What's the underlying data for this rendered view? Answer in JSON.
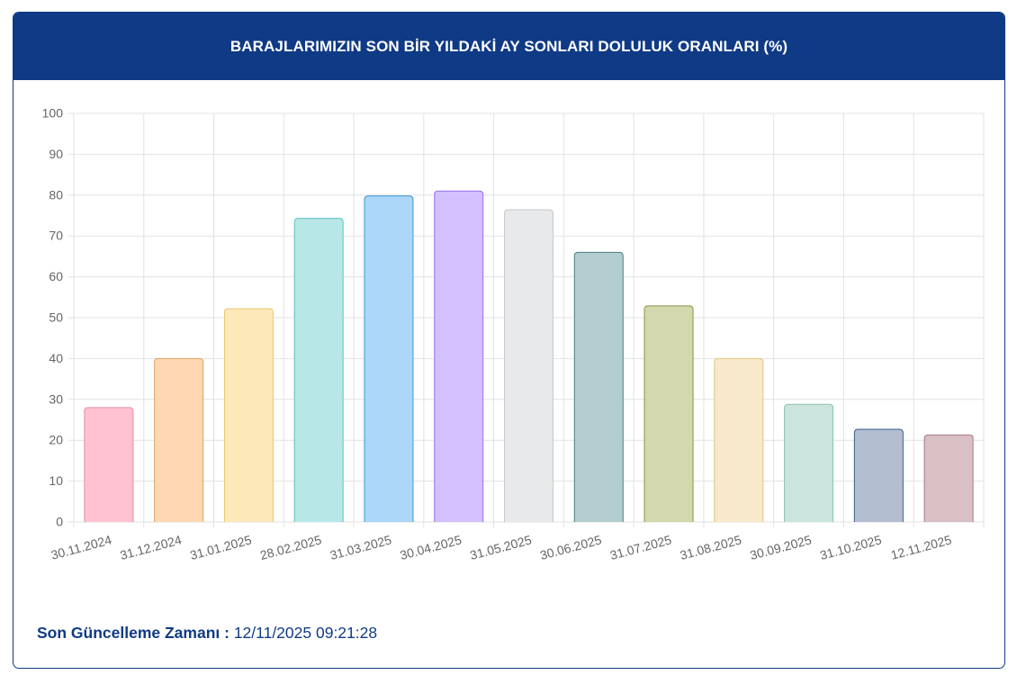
{
  "panel": {
    "title": "BARAJLARIMIZIN SON BİR YILDAKİ AY SONLARI DOLULUK ORANLARI (%)"
  },
  "footer": {
    "label": "Son Güncelleme Zamanı :",
    "value": "12/11/2025 09:21:28"
  },
  "chart_data": {
    "type": "bar",
    "categories": [
      "30.11.2024",
      "31.12.2024",
      "31.01.2025",
      "28.02.2025",
      "31.03.2025",
      "30.04.2025",
      "31.05.2025",
      "30.06.2025",
      "31.07.2025",
      "31.08.2025",
      "30.09.2025",
      "31.10.2025",
      "12.11.2025"
    ],
    "values": [
      28,
      40,
      52.2,
      74.3,
      79.8,
      81,
      76.4,
      66,
      52.9,
      40,
      28.8,
      22.7,
      21.3
    ],
    "ylim": [
      0,
      100
    ],
    "yticks": [
      0,
      10,
      20,
      30,
      40,
      50,
      60,
      70,
      80,
      90,
      100
    ],
    "grid": true,
    "legend": "none",
    "colors": {
      "fill": [
        "#ffc2d1",
        "#fed8b3",
        "#fde8ba",
        "#b7e7e6",
        "#acd7f9",
        "#d4c0fd",
        "#e8e9ea",
        "#b3cdd1",
        "#d3d8ae",
        "#f7e9c9",
        "#c9e5de",
        "#b3bfd1",
        "#d8c0c5"
      ],
      "stroke": [
        "#e88ba2",
        "#e0a15f",
        "#e8c86b",
        "#5cc4c0",
        "#3a98d6",
        "#9a6ee8",
        "#c6c8cc",
        "#4d7f86",
        "#8b9444",
        "#e0c580",
        "#8fc2b4",
        "#3a5a8c",
        "#a87a84"
      ]
    }
  }
}
